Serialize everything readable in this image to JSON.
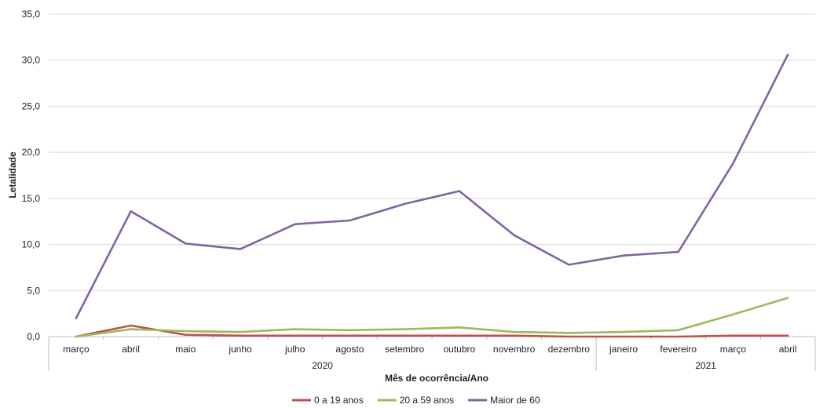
{
  "chart_data": {
    "type": "line",
    "xlabel": "Mês de ocorrência/Ano",
    "ylabel": "Letalidade",
    "ylim": [
      0,
      35
    ],
    "yticks": [
      "0,0",
      "5,0",
      "10,0",
      "15,0",
      "20,0",
      "25,0",
      "30,0",
      "35,0"
    ],
    "grid": true,
    "legend_position": "bottom",
    "categories": [
      "março",
      "abril",
      "maio",
      "junho",
      "julho",
      "agosto",
      "setembro",
      "outubro",
      "novembro",
      "dezembro",
      "janeiro",
      "fevereiro",
      "março",
      "abril"
    ],
    "year_groups": [
      {
        "label": "2020",
        "count": 10
      },
      {
        "label": "2021",
        "count": 4
      }
    ],
    "series": [
      {
        "name": "0 a 19 anos",
        "color": "#c0504d",
        "values": [
          0.0,
          1.2,
          0.2,
          0.1,
          0.1,
          0.1,
          0.1,
          0.1,
          0.1,
          0.0,
          0.0,
          0.0,
          0.1,
          0.1
        ]
      },
      {
        "name": "20 a 59 anos",
        "color": "#9bbb59",
        "values": [
          0.0,
          0.8,
          0.6,
          0.5,
          0.8,
          0.7,
          0.8,
          1.0,
          0.5,
          0.4,
          0.5,
          0.7,
          2.4,
          4.2
        ]
      },
      {
        "name": "Maior de 60",
        "color": "#8064a2",
        "values": [
          2.0,
          13.6,
          10.1,
          9.5,
          12.2,
          12.6,
          14.4,
          15.8,
          11.0,
          7.8,
          8.8,
          9.2,
          18.8,
          30.6
        ]
      }
    ]
  }
}
